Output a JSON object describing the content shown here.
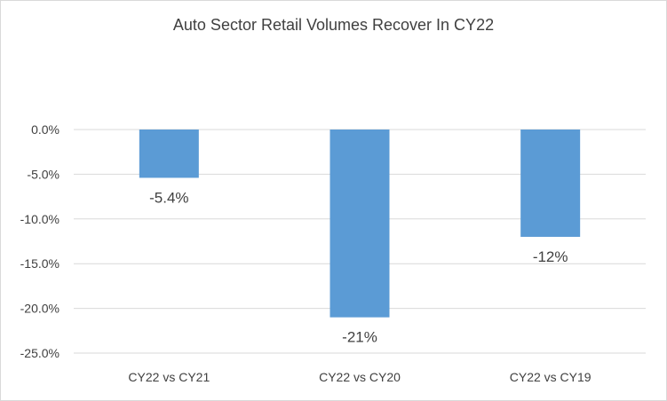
{
  "chart_data": {
    "type": "bar",
    "title": "Auto Sector Retail Volumes Recover In CY22",
    "categories": [
      "CY22 vs CY21",
      "CY22 vs CY20",
      "CY22 vs CY19"
    ],
    "values": [
      -5.4,
      -21,
      -12
    ],
    "data_labels": [
      "-5.4%",
      "-21%",
      "-12%"
    ],
    "y_tick_values": [
      0,
      -5,
      -10,
      -15,
      -20,
      -25
    ],
    "y_tick_labels": [
      "0.0%",
      "-5.0%",
      "-10.0%",
      "-15.0%",
      "-20.0%",
      "-25.0%"
    ],
    "ylim": [
      -25,
      0
    ],
    "xlabel": "",
    "ylabel": "",
    "grid": true,
    "legend": "none",
    "colors": {
      "bar": "#5b9bd5",
      "grid": "#d9d9d9",
      "text": "#404040"
    }
  }
}
